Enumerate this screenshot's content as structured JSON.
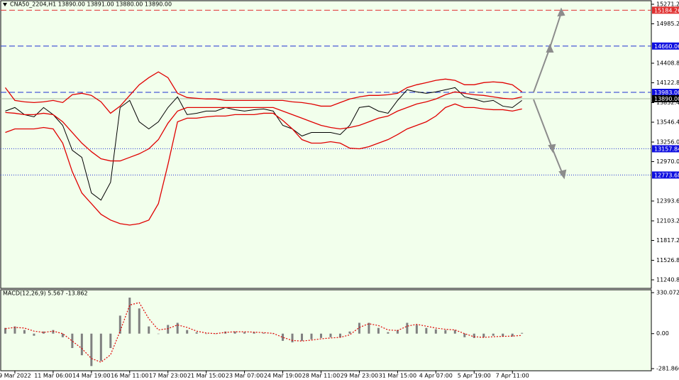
{
  "chart_data": {
    "type": "line",
    "title": "CNA50_2204,H1 13890.00 13891.00 13880.00 13890.00",
    "x": [
      -0.25,
      0,
      0.25,
      0.5,
      0.75,
      1,
      1.25,
      1.5,
      1.75,
      2,
      2.25,
      2.5,
      2.75,
      3,
      3.25,
      3.5,
      3.75,
      4,
      4.25,
      4.5,
      4.75,
      5,
      5.25,
      5.5,
      5.75,
      6,
      6.25,
      6.5,
      6.75,
      7,
      7.25,
      7.5,
      7.75,
      8,
      8.25,
      8.5,
      8.75,
      9,
      9.25,
      9.5,
      9.75,
      10,
      10.25,
      10.5,
      10.75,
      11,
      11.25,
      11.5,
      11.75,
      12,
      12.25,
      12.5,
      12.75,
      13,
      13.25
    ],
    "series": [
      {
        "color": "#000000",
        "values": [
          13709,
          13761,
          13657,
          13625,
          13761,
          13657,
          13500,
          13136,
          13032,
          12511,
          12407,
          12667,
          13761,
          13865,
          13552,
          13448,
          13552,
          13761,
          13917,
          13657,
          13677,
          13709,
          13709,
          13761,
          13729,
          13709,
          13729,
          13740,
          13709,
          13500,
          13448,
          13344,
          13396,
          13396,
          13396,
          13365,
          13500,
          13761,
          13781,
          13709,
          13677,
          13865,
          14021,
          13990,
          13969,
          13990,
          14021,
          14052,
          13917,
          13886,
          13844,
          13865,
          13781,
          13761,
          13865
        ]
      },
      {
        "color": "#e00000",
        "values": [
          14052,
          13865,
          13844,
          13834,
          13844,
          13865,
          13834,
          13948,
          13969,
          13938,
          13844,
          13677,
          13781,
          13938,
          14094,
          14198,
          14282,
          14198,
          13969,
          13907,
          13896,
          13886,
          13886,
          13865,
          13865,
          13865,
          13865,
          13865,
          13865,
          13865,
          13844,
          13834,
          13813,
          13781,
          13781,
          13834,
          13886,
          13917,
          13938,
          13938,
          13948,
          13969,
          14052,
          14094,
          14125,
          14158,
          14177,
          14158,
          14094,
          14094,
          14125,
          14136,
          14125,
          14094,
          13990
        ]
      },
      {
        "color": "#e00000",
        "values": [
          13688,
          13677,
          13657,
          13657,
          13677,
          13657,
          13552,
          13396,
          13240,
          13115,
          13011,
          12980,
          12980,
          13032,
          13084,
          13157,
          13292,
          13532,
          13709,
          13761,
          13761,
          13761,
          13761,
          13761,
          13761,
          13761,
          13761,
          13761,
          13761,
          13709,
          13657,
          13605,
          13552,
          13500,
          13469,
          13448,
          13469,
          13500,
          13552,
          13605,
          13636,
          13709,
          13761,
          13813,
          13844,
          13886,
          13948,
          13990,
          13969,
          13948,
          13938,
          13917,
          13896,
          13886,
          13917
        ]
      },
      {
        "color": "#e00000",
        "values": [
          13396,
          13448,
          13448,
          13448,
          13469,
          13448,
          13240,
          12823,
          12511,
          12355,
          12199,
          12115,
          12063,
          12042,
          12063,
          12115,
          12355,
          12928,
          13552,
          13605,
          13605,
          13625,
          13636,
          13636,
          13657,
          13657,
          13657,
          13677,
          13677,
          13573,
          13448,
          13292,
          13240,
          13240,
          13261,
          13240,
          13167,
          13157,
          13188,
          13240,
          13292,
          13365,
          13448,
          13500,
          13552,
          13636,
          13761,
          13813,
          13761,
          13761,
          13740,
          13729,
          13729,
          13709,
          13740
        ]
      }
    ],
    "levels": [
      {
        "value": 15184.26,
        "color": "#e03030",
        "line_color": "#e03030",
        "style": "dashed"
      },
      {
        "value": 14660.06,
        "color": "#1010e0",
        "line_color": "#2030d0",
        "style": "dashed"
      },
      {
        "value": 13983,
        "label": "13983.00",
        "color": "#1010e0",
        "line_color": "#2030d0",
        "style": "dashed"
      },
      {
        "value": 13890,
        "label": "13890.00",
        "color": "#000000",
        "line_color": "#a8b8a0",
        "style": "solid"
      },
      {
        "value": 13157.84,
        "color": "#1010e0",
        "line_color": "#2030d0",
        "style": "dotted"
      },
      {
        "value": 12773.68,
        "color": "#1010e0",
        "line_color": "#2030d0",
        "style": "dotted"
      }
    ],
    "xlim": [
      -0.37,
      16.63
    ],
    "xticks": [
      {
        "value": 0,
        "label": "9 Mar 2022"
      },
      {
        "value": 1,
        "label": "11 Mar 06:00"
      },
      {
        "value": 2,
        "label": "14 Mar 19:00"
      },
      {
        "value": 3,
        "label": "16 Mar 11:00"
      },
      {
        "value": 4,
        "label": "17 Mar 23:00"
      },
      {
        "value": 5,
        "label": "21 Mar 15:00"
      },
      {
        "value": 6,
        "label": "23 Mar 07:00"
      },
      {
        "value": 7,
        "label": "24 Mar 19:00"
      },
      {
        "value": 8,
        "label": "28 Mar 11:00"
      },
      {
        "value": 9,
        "label": "29 Mar 23:00"
      },
      {
        "value": 10,
        "label": "31 Mar 15:00"
      },
      {
        "value": 11,
        "label": "4 Apr 07:00"
      },
      {
        "value": 12,
        "label": "5 Apr 19:00"
      },
      {
        "value": 13,
        "label": "7 Apr 11:00"
      }
    ],
    "ylim": [
      11116,
      15323
    ],
    "yticks": [
      {
        "value": 15271.2,
        "label": "15271.20"
      },
      {
        "value": 14985.2,
        "label": "14985.20"
      },
      {
        "value": 14408.8,
        "label": "14408.80"
      },
      {
        "value": 14122.8,
        "label": "14122.80"
      },
      {
        "value": 13832.4,
        "label": "13832.40"
      },
      {
        "value": 13546.4,
        "label": "13546.40"
      },
      {
        "value": 13256,
        "label": "13256.00"
      },
      {
        "value": 12970,
        "label": "12970.00"
      },
      {
        "value": 12393.6,
        "label": "12393.60"
      },
      {
        "value": 12103.2,
        "label": "12103.20"
      },
      {
        "value": 11817.2,
        "label": "11817.20"
      },
      {
        "value": 11526.8,
        "label": "11526.80"
      },
      {
        "value": 11240.8,
        "label": "11240.80"
      }
    ],
    "macd": {
      "type": "macd",
      "label": "MACD(12,26,9) 5.567 -13.862",
      "histogram": {
        "color": "#808080",
        "values": [
          46,
          58,
          29,
          -17,
          17,
          29,
          -29,
          -116,
          -174,
          -261,
          -220,
          -116,
          145,
          290,
          203,
          58,
          0,
          70,
          87,
          29,
          12,
          0,
          0,
          17,
          17,
          12,
          12,
          6,
          0,
          -58,
          -70,
          -58,
          -46,
          -35,
          -29,
          -29,
          17,
          87,
          87,
          46,
          12,
          29,
          87,
          70,
          46,
          35,
          29,
          29,
          -29,
          -35,
          -29,
          -17,
          -23,
          -23,
          6
        ]
      },
      "signal": {
        "color": "#e00000",
        "values": [
          40,
          50,
          45,
          20,
          10,
          20,
          0,
          -60,
          -120,
          -200,
          -230,
          -170,
          20,
          230,
          250,
          120,
          30,
          40,
          70,
          50,
          20,
          5,
          0,
          10,
          15,
          15,
          12,
          8,
          2,
          -30,
          -55,
          -60,
          -52,
          -42,
          -35,
          -30,
          -10,
          50,
          80,
          65,
          30,
          25,
          60,
          75,
          60,
          45,
          35,
          30,
          0,
          -25,
          -30,
          -25,
          -22,
          -20,
          -14
        ]
      },
      "ylim": [
        -299,
        353
      ],
      "yticks": [
        330.072,
        {
          "value": 0,
          "label": "0.00"
        },
        -281.866
      ]
    }
  }
}
